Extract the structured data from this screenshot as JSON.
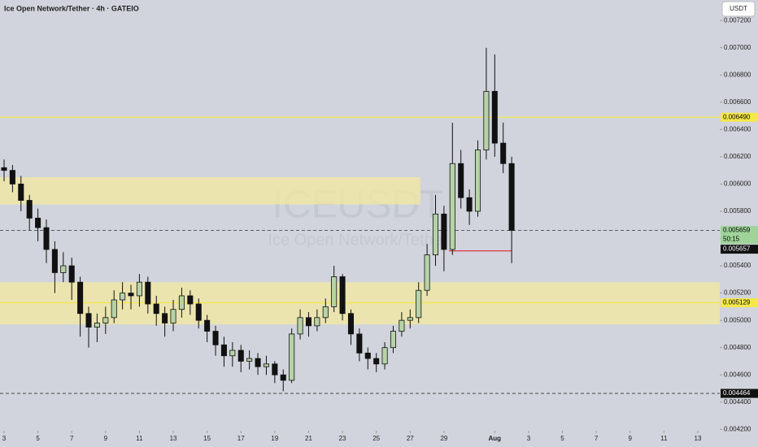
{
  "chart_data": {
    "type": "candlestick",
    "title": "Ice Open Network/Tether · 4h · GATEIO",
    "currency_button": "USDT",
    "watermark": [
      "ICEUSDT",
      "Ice Open Network/Tether"
    ],
    "up_color": "#b7d3a6",
    "down_color": "#111111",
    "x": [
      0,
      0.5,
      1,
      1.5,
      2,
      2.5,
      3,
      3.5,
      4,
      4.5,
      5,
      5.5,
      6,
      6.5,
      7,
      7.5,
      8,
      8.5,
      9,
      9.5,
      10,
      10.5,
      11,
      11.5,
      12,
      12.5,
      13,
      13.5,
      14,
      14.5,
      15,
      15.5,
      16,
      16.5,
      17,
      17.5,
      18,
      18.5,
      19,
      19.5,
      20,
      20.5,
      21,
      21.5,
      22,
      22.5,
      23,
      23.5,
      24,
      24.5,
      25,
      25.5,
      26,
      26.5,
      27,
      27.5,
      28,
      28.5,
      29,
      29.5,
      30
    ],
    "open": [
      0.00612,
      0.0061,
      0.006,
      0.00588,
      0.00575,
      0.00568,
      0.00552,
      0.00535,
      0.0054,
      0.00528,
      0.00505,
      0.00495,
      0.00498,
      0.00502,
      0.00515,
      0.0052,
      0.00518,
      0.00528,
      0.00512,
      0.00505,
      0.00498,
      0.00508,
      0.00518,
      0.00512,
      0.005,
      0.00492,
      0.00482,
      0.00474,
      0.00478,
      0.0047,
      0.00472,
      0.00466,
      0.00468,
      0.0046,
      0.00456,
      0.0049,
      0.00502,
      0.00496,
      0.00502,
      0.0051,
      0.00532,
      0.00505,
      0.0049,
      0.00476,
      0.00472,
      0.00468,
      0.0048,
      0.00492,
      0.005,
      0.00502,
      0.00522,
      0.00548,
      0.00578,
      0.00552,
      0.00615,
      0.0059,
      0.0058,
      0.00625,
      0.00668,
      0.0063,
      0.00615
    ],
    "high": [
      0.00618,
      0.00614,
      0.00606,
      0.00592,
      0.00582,
      0.00574,
      0.00558,
      0.0055,
      0.00546,
      0.00532,
      0.0051,
      0.00505,
      0.0051,
      0.00522,
      0.00528,
      0.00526,
      0.00534,
      0.00532,
      0.00518,
      0.0051,
      0.00515,
      0.00524,
      0.00522,
      0.00516,
      0.00504,
      0.00496,
      0.00488,
      0.00484,
      0.00482,
      0.00478,
      0.00476,
      0.00474,
      0.0047,
      0.00464,
      0.00494,
      0.00508,
      0.00506,
      0.00508,
      0.00516,
      0.0054,
      0.00534,
      0.00508,
      0.00494,
      0.0048,
      0.00476,
      0.00484,
      0.00496,
      0.00506,
      0.00508,
      0.00528,
      0.00556,
      0.00592,
      0.00584,
      0.00645,
      0.00625,
      0.00596,
      0.00632,
      0.007,
      0.00695,
      0.00645,
      0.0062
    ],
    "low": [
      0.00602,
      0.00594,
      0.0058,
      0.00566,
      0.00558,
      0.00542,
      0.0052,
      0.00528,
      0.00515,
      0.00488,
      0.0048,
      0.00484,
      0.0049,
      0.00498,
      0.00508,
      0.00508,
      0.0051,
      0.00505,
      0.00496,
      0.00488,
      0.00492,
      0.00502,
      0.00504,
      0.00494,
      0.00484,
      0.00474,
      0.00466,
      0.00466,
      0.00462,
      0.00464,
      0.0046,
      0.0046,
      0.00454,
      0.00448,
      0.00454,
      0.00486,
      0.00488,
      0.00492,
      0.00498,
      0.00506,
      0.005,
      0.00482,
      0.0047,
      0.00464,
      0.00462,
      0.00464,
      0.00476,
      0.00488,
      0.00494,
      0.00498,
      0.00518,
      0.0054,
      0.00536,
      0.00548,
      0.00582,
      0.0057,
      0.00576,
      0.00618,
      0.0062,
      0.00608,
      0.00542
    ],
    "close": [
      0.0061,
      0.006,
      0.00588,
      0.00575,
      0.00568,
      0.00552,
      0.00535,
      0.0054,
      0.00528,
      0.00505,
      0.00495,
      0.00498,
      0.00502,
      0.00515,
      0.0052,
      0.00518,
      0.00528,
      0.00512,
      0.00505,
      0.00498,
      0.00508,
      0.00518,
      0.00512,
      0.005,
      0.00492,
      0.00482,
      0.00474,
      0.00478,
      0.0047,
      0.00472,
      0.00466,
      0.00468,
      0.0046,
      0.00456,
      0.0049,
      0.00502,
      0.00496,
      0.00502,
      0.0051,
      0.00532,
      0.00505,
      0.0049,
      0.00476,
      0.00472,
      0.00468,
      0.0048,
      0.00492,
      0.005,
      0.00502,
      0.00522,
      0.00548,
      0.00578,
      0.00552,
      0.00615,
      0.0059,
      0.0058,
      0.00625,
      0.00668,
      0.0063,
      0.00615,
      0.00566
    ],
    "xlim": [
      -0.24,
      42.3
    ],
    "ylim": [
      0.00419,
      0.00735
    ],
    "xticks": [
      {
        "value": 0,
        "label": "3"
      },
      {
        "value": 2,
        "label": "5"
      },
      {
        "value": 4,
        "label": "7"
      },
      {
        "value": 6,
        "label": "9"
      },
      {
        "value": 8,
        "label": "11"
      },
      {
        "value": 10,
        "label": "13"
      },
      {
        "value": 12,
        "label": "15"
      },
      {
        "value": 14,
        "label": "17"
      },
      {
        "value": 16,
        "label": "19"
      },
      {
        "value": 18,
        "label": "21"
      },
      {
        "value": 20,
        "label": "23"
      },
      {
        "value": 22,
        "label": "25"
      },
      {
        "value": 24,
        "label": "27"
      },
      {
        "value": 26,
        "label": "29"
      },
      {
        "value": 29,
        "label": "Aug"
      },
      {
        "value": 31,
        "label": "3"
      },
      {
        "value": 33,
        "label": "5"
      },
      {
        "value": 35,
        "label": "7"
      },
      {
        "value": 37,
        "label": "9"
      },
      {
        "value": 39,
        "label": "11"
      },
      {
        "value": 41,
        "label": "13"
      }
    ],
    "yticks": [
      {
        "value": 0.0042,
        "label": "0.004200"
      },
      {
        "value": 0.0044,
        "label": "0.004400"
      },
      {
        "value": 0.0046,
        "label": "0.004600"
      },
      {
        "value": 0.0048,
        "label": "0.004800"
      },
      {
        "value": 0.005,
        "label": "0.005000"
      },
      {
        "value": 0.0052,
        "label": "0.005200"
      },
      {
        "value": 0.0054,
        "label": "0.005400"
      },
      {
        "value": 0.0056,
        "label": "0.005600"
      },
      {
        "value": 0.0058,
        "label": "0.005800"
      },
      {
        "value": 0.006,
        "label": "0.006000"
      },
      {
        "value": 0.0062,
        "label": "0.006200"
      },
      {
        "value": 0.0064,
        "label": "0.006400"
      },
      {
        "value": 0.0066,
        "label": "0.006600"
      },
      {
        "value": 0.0068,
        "label": "0.006800"
      },
      {
        "value": 0.007,
        "label": "0.007000"
      },
      {
        "value": 0.0072,
        "label": "0.007200"
      }
    ],
    "zones": [
      {
        "from": 0.00585,
        "to": 0.00605,
        "x": [
          -0.24,
          24.6
        ]
      },
      {
        "from": 0.00497,
        "to": 0.00528,
        "x": [
          -0.24,
          42.3
        ]
      }
    ],
    "zone_color": "#f3e9a0",
    "segment": {
      "y": 0.00551,
      "x": [
        26.3,
        30
      ],
      "color": "#e0393e"
    },
    "price_lines": [
      {
        "value": 0.00649,
        "label": "0.006490",
        "style": "solid",
        "color": "#f5e84a",
        "text_color": "#000000"
      },
      {
        "value": 0.005659,
        "label": "0.005659",
        "style": "dashed",
        "color": "#9fd39a",
        "text_color": "#000000",
        "countdown": "50:15"
      },
      {
        "value": 0.005657,
        "label": "0.005657",
        "style": "none",
        "color": "#111111",
        "text_color": "#ffffff"
      },
      {
        "value": 0.005129,
        "label": "0.005129",
        "style": "solid",
        "color": "#f5e84a",
        "text_color": "#000000"
      },
      {
        "value": 0.004464,
        "label": "0.004464",
        "style": "dashed",
        "color": "#111111",
        "text_color": "#ffffff"
      }
    ]
  }
}
